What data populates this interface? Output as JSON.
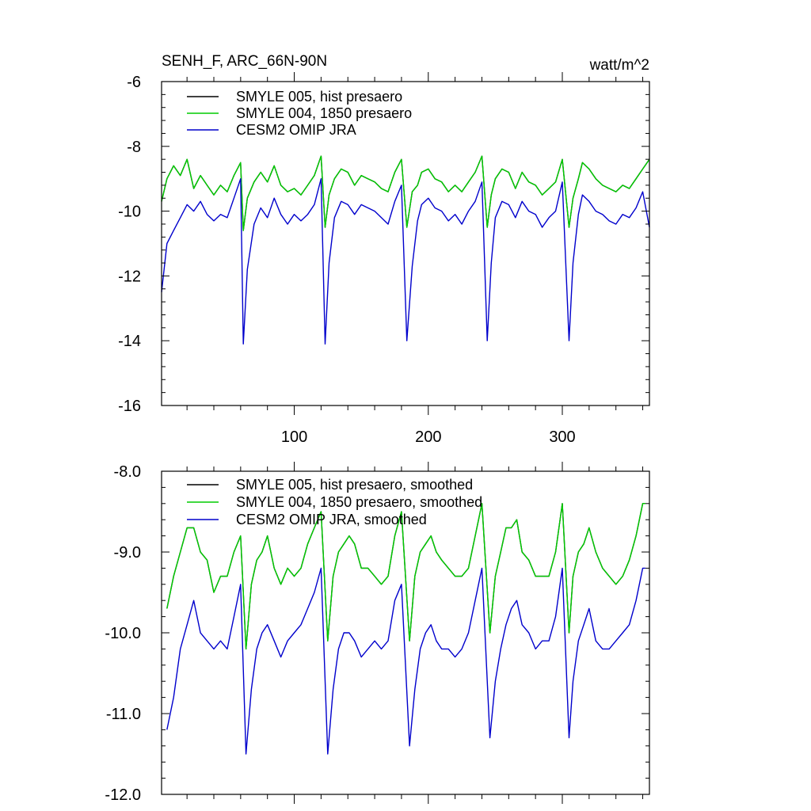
{
  "chart_data": [
    {
      "type": "line",
      "title": "SENH_F, ARC_66N-90N",
      "units": "watt/m^2",
      "xlim": [
        1,
        365
      ],
      "ylim": [
        -16,
        -6
      ],
      "xticks": [
        100,
        200,
        300
      ],
      "xtick_labels": [
        "100",
        "200",
        "300"
      ],
      "yticks": [
        -16,
        -14,
        -12,
        -10,
        -8,
        -6
      ],
      "ytick_labels": [
        "-16",
        "-14",
        "-12",
        "-10",
        "-8",
        "-6"
      ],
      "legend": "top-left",
      "grid": false,
      "series": [
        {
          "name": "SMYLE 005, hist presaero",
          "color": "#000000",
          "x": [
            1,
            5,
            10,
            15,
            20,
            25,
            30,
            35,
            40,
            45,
            50,
            55,
            60,
            62,
            65,
            70,
            75,
            80,
            85,
            90,
            95,
            100,
            105,
            110,
            115,
            120,
            123,
            126,
            130,
            135,
            140,
            145,
            150,
            155,
            160,
            165,
            170,
            175,
            180,
            184,
            188,
            192,
            195,
            200,
            205,
            210,
            215,
            220,
            225,
            230,
            235,
            240,
            244,
            247,
            250,
            255,
            260,
            265,
            270,
            275,
            280,
            285,
            290,
            295,
            300,
            305,
            308,
            312,
            315,
            320,
            325,
            330,
            335,
            340,
            345,
            350,
            355,
            360,
            365
          ],
          "values": [
            -9.7,
            -9.0,
            -8.6,
            -8.9,
            -8.4,
            -9.3,
            -8.9,
            -9.2,
            -9.5,
            -9.2,
            -9.4,
            -8.9,
            -8.5,
            -10.6,
            -9.6,
            -9.1,
            -8.8,
            -9.1,
            -8.6,
            -9.2,
            -9.4,
            -9.3,
            -9.5,
            -9.2,
            -8.9,
            -8.3,
            -10.5,
            -9.5,
            -9.0,
            -8.7,
            -8.8,
            -9.2,
            -8.9,
            -9.0,
            -9.1,
            -9.3,
            -9.4,
            -8.8,
            -8.4,
            -10.5,
            -9.4,
            -9.2,
            -8.8,
            -8.7,
            -9.0,
            -9.1,
            -9.4,
            -9.2,
            -9.4,
            -9.1,
            -8.8,
            -8.3,
            -10.5,
            -9.5,
            -9.0,
            -8.7,
            -8.8,
            -9.3,
            -8.8,
            -9.1,
            -9.2,
            -9.5,
            -9.3,
            -9.1,
            -8.4,
            -10.5,
            -9.6,
            -9.0,
            -8.5,
            -8.7,
            -9.0,
            -9.2,
            -9.3,
            -9.4,
            -9.2,
            -9.3,
            -9.0,
            -8.7,
            -8.4
          ]
        },
        {
          "name": "SMYLE 004, 1850 presaero",
          "color": "#00cc00",
          "x": [
            1,
            5,
            10,
            15,
            20,
            25,
            30,
            35,
            40,
            45,
            50,
            55,
            60,
            62,
            65,
            70,
            75,
            80,
            85,
            90,
            95,
            100,
            105,
            110,
            115,
            120,
            123,
            126,
            130,
            135,
            140,
            145,
            150,
            155,
            160,
            165,
            170,
            175,
            180,
            184,
            188,
            192,
            195,
            200,
            205,
            210,
            215,
            220,
            225,
            230,
            235,
            240,
            244,
            247,
            250,
            255,
            260,
            265,
            270,
            275,
            280,
            285,
            290,
            295,
            300,
            305,
            308,
            312,
            315,
            320,
            325,
            330,
            335,
            340,
            345,
            350,
            355,
            360,
            365
          ],
          "values": [
            -9.7,
            -9.0,
            -8.6,
            -8.9,
            -8.4,
            -9.3,
            -8.9,
            -9.2,
            -9.5,
            -9.2,
            -9.4,
            -8.9,
            -8.5,
            -10.6,
            -9.6,
            -9.1,
            -8.8,
            -9.1,
            -8.6,
            -9.2,
            -9.4,
            -9.3,
            -9.5,
            -9.2,
            -8.9,
            -8.3,
            -10.5,
            -9.5,
            -9.0,
            -8.7,
            -8.8,
            -9.2,
            -8.9,
            -9.0,
            -9.1,
            -9.3,
            -9.4,
            -8.8,
            -8.4,
            -10.5,
            -9.4,
            -9.2,
            -8.8,
            -8.7,
            -9.0,
            -9.1,
            -9.4,
            -9.2,
            -9.4,
            -9.1,
            -8.8,
            -8.3,
            -10.5,
            -9.5,
            -9.0,
            -8.7,
            -8.8,
            -9.3,
            -8.8,
            -9.1,
            -9.2,
            -9.5,
            -9.3,
            -9.1,
            -8.4,
            -10.5,
            -9.6,
            -9.0,
            -8.5,
            -8.7,
            -9.0,
            -9.2,
            -9.3,
            -9.4,
            -9.2,
            -9.3,
            -9.0,
            -8.7,
            -8.4
          ]
        },
        {
          "name": "CESM2 OMIP JRA",
          "color": "#0000cc",
          "x": [
            1,
            5,
            10,
            15,
            20,
            25,
            30,
            35,
            40,
            45,
            50,
            55,
            60,
            62,
            65,
            70,
            75,
            80,
            85,
            90,
            95,
            100,
            105,
            110,
            115,
            120,
            123,
            126,
            130,
            135,
            140,
            145,
            150,
            155,
            160,
            165,
            170,
            175,
            180,
            184,
            188,
            192,
            195,
            200,
            205,
            210,
            215,
            220,
            225,
            230,
            235,
            240,
            244,
            247,
            250,
            255,
            260,
            265,
            270,
            275,
            280,
            285,
            290,
            295,
            300,
            305,
            308,
            312,
            315,
            320,
            325,
            330,
            335,
            340,
            345,
            350,
            355,
            360,
            365
          ],
          "values": [
            -12.5,
            -11.0,
            -10.6,
            -10.2,
            -9.8,
            -10.0,
            -9.7,
            -10.1,
            -10.3,
            -10.1,
            -10.2,
            -9.6,
            -9.0,
            -14.1,
            -11.8,
            -10.4,
            -9.9,
            -10.2,
            -9.6,
            -10.1,
            -10.4,
            -10.1,
            -10.3,
            -10.1,
            -9.8,
            -9.0,
            -14.1,
            -11.6,
            -10.2,
            -9.7,
            -9.8,
            -10.1,
            -9.8,
            -9.9,
            -10.0,
            -10.2,
            -10.4,
            -9.7,
            -9.2,
            -14.0,
            -11.7,
            -10.3,
            -9.8,
            -9.6,
            -9.9,
            -10.0,
            -10.3,
            -10.1,
            -10.4,
            -10.0,
            -9.7,
            -9.1,
            -14.0,
            -11.6,
            -10.2,
            -9.7,
            -9.8,
            -10.2,
            -9.7,
            -10.0,
            -10.1,
            -10.5,
            -10.2,
            -10.0,
            -9.1,
            -14.0,
            -11.6,
            -10.1,
            -9.5,
            -9.7,
            -10.0,
            -10.1,
            -10.3,
            -10.4,
            -10.1,
            -10.2,
            -9.9,
            -9.4,
            -10.5
          ]
        }
      ]
    },
    {
      "type": "line",
      "title": "",
      "xlim": [
        1,
        365
      ],
      "ylim": [
        -12,
        -8
      ],
      "xticks": [
        100,
        200,
        300
      ],
      "xtick_labels": [
        "",
        "",
        ""
      ],
      "yticks": [
        -12,
        -11,
        -10,
        -9,
        -8
      ],
      "ytick_labels": [
        "-12.0",
        "-11.0",
        "-10.0",
        "-9.0",
        "-8.0"
      ],
      "legend": "top-left",
      "grid": false,
      "series": [
        {
          "name": "SMYLE 005, hist presaero, smoothed",
          "color": "#000000",
          "x": [
            5,
            10,
            15,
            20,
            25,
            30,
            35,
            40,
            45,
            50,
            55,
            60,
            64,
            68,
            72,
            76,
            80,
            85,
            90,
            95,
            100,
            105,
            110,
            115,
            120,
            125,
            129,
            133,
            137,
            141,
            145,
            150,
            155,
            160,
            165,
            170,
            175,
            180,
            186,
            190,
            194,
            198,
            202,
            206,
            210,
            215,
            220,
            225,
            230,
            235,
            240,
            246,
            250,
            254,
            258,
            262,
            266,
            270,
            275,
            280,
            285,
            290,
            295,
            300,
            305,
            308,
            312,
            316,
            320,
            325,
            330,
            335,
            340,
            345,
            350,
            355,
            360,
            362
          ],
          "values": [
            -9.7,
            -9.3,
            -9.0,
            -8.7,
            -8.7,
            -9.0,
            -9.1,
            -9.5,
            -9.3,
            -9.3,
            -9.0,
            -8.8,
            -10.2,
            -9.4,
            -9.1,
            -9.0,
            -8.8,
            -9.2,
            -9.4,
            -9.2,
            -9.3,
            -9.2,
            -8.9,
            -8.7,
            -8.5,
            -10.1,
            -9.3,
            -9.0,
            -8.9,
            -8.8,
            -8.9,
            -9.2,
            -9.2,
            -9.3,
            -9.4,
            -9.3,
            -8.8,
            -8.5,
            -10.1,
            -9.3,
            -9.0,
            -8.9,
            -8.8,
            -9.0,
            -9.1,
            -9.2,
            -9.3,
            -9.3,
            -9.2,
            -8.8,
            -8.4,
            -10.0,
            -9.3,
            -9.0,
            -8.7,
            -8.7,
            -8.6,
            -9.0,
            -9.1,
            -9.3,
            -9.3,
            -9.3,
            -9.0,
            -8.4,
            -10.0,
            -9.3,
            -9.0,
            -8.9,
            -8.7,
            -9.0,
            -9.2,
            -9.3,
            -9.4,
            -9.3,
            -9.1,
            -8.8,
            -8.4,
            -8.4
          ]
        },
        {
          "name": "SMYLE 004, 1850 presaero, smoothed",
          "color": "#00cc00",
          "x": [
            5,
            10,
            15,
            20,
            25,
            30,
            35,
            40,
            45,
            50,
            55,
            60,
            64,
            68,
            72,
            76,
            80,
            85,
            90,
            95,
            100,
            105,
            110,
            115,
            120,
            125,
            129,
            133,
            137,
            141,
            145,
            150,
            155,
            160,
            165,
            170,
            175,
            180,
            186,
            190,
            194,
            198,
            202,
            206,
            210,
            215,
            220,
            225,
            230,
            235,
            240,
            246,
            250,
            254,
            258,
            262,
            266,
            270,
            275,
            280,
            285,
            290,
            295,
            300,
            305,
            308,
            312,
            316,
            320,
            325,
            330,
            335,
            340,
            345,
            350,
            355,
            360,
            362
          ],
          "values": [
            -9.7,
            -9.3,
            -9.0,
            -8.7,
            -8.7,
            -9.0,
            -9.1,
            -9.5,
            -9.3,
            -9.3,
            -9.0,
            -8.8,
            -10.2,
            -9.4,
            -9.1,
            -9.0,
            -8.8,
            -9.2,
            -9.4,
            -9.2,
            -9.3,
            -9.2,
            -8.9,
            -8.7,
            -8.5,
            -10.1,
            -9.3,
            -9.0,
            -8.9,
            -8.8,
            -8.9,
            -9.2,
            -9.2,
            -9.3,
            -9.4,
            -9.3,
            -8.8,
            -8.5,
            -10.1,
            -9.3,
            -9.0,
            -8.9,
            -8.8,
            -9.0,
            -9.1,
            -9.2,
            -9.3,
            -9.3,
            -9.2,
            -8.8,
            -8.4,
            -10.0,
            -9.3,
            -9.0,
            -8.7,
            -8.7,
            -8.6,
            -9.0,
            -9.1,
            -9.3,
            -9.3,
            -9.3,
            -9.0,
            -8.4,
            -10.0,
            -9.3,
            -9.0,
            -8.9,
            -8.7,
            -9.0,
            -9.2,
            -9.3,
            -9.4,
            -9.3,
            -9.1,
            -8.8,
            -8.4,
            -8.4
          ]
        },
        {
          "name": "CESM2 OMIP JRA, smoothed",
          "color": "#0000cc",
          "x": [
            5,
            10,
            15,
            20,
            25,
            30,
            35,
            40,
            45,
            50,
            55,
            60,
            64,
            68,
            72,
            76,
            80,
            85,
            90,
            95,
            100,
            105,
            110,
            115,
            120,
            125,
            129,
            133,
            137,
            141,
            145,
            150,
            155,
            160,
            165,
            170,
            175,
            180,
            186,
            190,
            194,
            198,
            202,
            206,
            210,
            215,
            220,
            225,
            230,
            235,
            240,
            246,
            250,
            254,
            258,
            262,
            266,
            270,
            275,
            280,
            285,
            290,
            295,
            300,
            305,
            308,
            312,
            316,
            320,
            325,
            330,
            335,
            340,
            345,
            350,
            355,
            360,
            362
          ],
          "values": [
            -11.2,
            -10.8,
            -10.2,
            -9.9,
            -9.6,
            -10.0,
            -10.1,
            -10.2,
            -10.1,
            -10.2,
            -9.8,
            -9.4,
            -11.5,
            -10.7,
            -10.2,
            -10.0,
            -9.9,
            -10.1,
            -10.3,
            -10.1,
            -10.0,
            -9.9,
            -9.7,
            -9.5,
            -9.2,
            -11.5,
            -10.7,
            -10.2,
            -10.0,
            -10.0,
            -10.1,
            -10.3,
            -10.2,
            -10.1,
            -10.2,
            -10.1,
            -9.6,
            -9.4,
            -11.4,
            -10.7,
            -10.2,
            -10.0,
            -9.9,
            -10.1,
            -10.2,
            -10.2,
            -10.3,
            -10.2,
            -10.0,
            -9.6,
            -9.2,
            -11.3,
            -10.6,
            -10.2,
            -9.9,
            -9.7,
            -9.6,
            -9.9,
            -10.0,
            -10.2,
            -10.1,
            -10.1,
            -9.8,
            -9.2,
            -11.3,
            -10.6,
            -10.1,
            -9.9,
            -9.7,
            -10.1,
            -10.2,
            -10.2,
            -10.1,
            -10.0,
            -9.9,
            -9.6,
            -9.2,
            -9.2
          ]
        }
      ]
    }
  ]
}
